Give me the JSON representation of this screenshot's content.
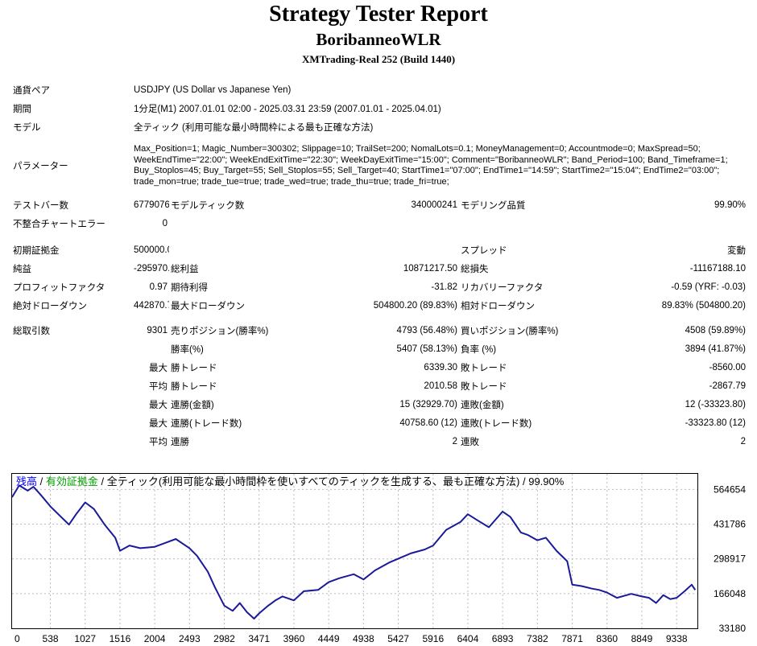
{
  "header": {
    "title": "Strategy Tester Report",
    "subtitle": "BoribanneoWLR",
    "build": "XMTrading-Real 252 (Build 1440)"
  },
  "info": {
    "pair_label": "通貨ペア",
    "pair_value": "USDJPY (US Dollar vs Japanese Yen)",
    "period_label": "期間",
    "period_value": "1分足(M1) 2007.01.01 02:00 - 2025.03.31 23:59 (2007.01.01 - 2025.04.01)",
    "model_label": "モデル",
    "model_value": "全ティック (利用可能な最小時間枠による最も正確な方法)",
    "params_label": "パラメーター",
    "params_value": "Max_Position=1; Magic_Number=300302; Slippage=10; TrailSet=200; NomalLots=0.1; MoneyManagement=0; Accountmode=0; MaxSpread=50; WeekEndTime=\"22:00\"; WeekEndExitTime=\"22:30\"; WeekDayExitTime=\"15:00\"; Comment=\"BoribanneoWLR\"; Band_Period=100; Band_Timeframe=1; Buy_Stoplos=45; Buy_Target=55; Sell_Stoplos=55; Sell_Target=40; StartTime1=\"07:00\"; EndTime1=\"14:59\"; StartTime2=\"15:04\"; EndTime2=\"03:00\"; trade_mon=true; trade_tue=true; trade_wed=true; trade_thu=true; trade_fri=true;"
  },
  "stats": {
    "bars_label": "テストバー数",
    "bars_value": "6779076",
    "ticks_label": "モデルティック数",
    "ticks_value": "340000241",
    "quality_label": "モデリング品質",
    "quality_value": "99.90%",
    "mismatch_label": "不整合チャートエラー",
    "mismatch_value": "0",
    "deposit_label": "初期証拠金",
    "deposit_value": "500000.00",
    "spread_label": "スプレッド",
    "spread_value": "変動",
    "net_label": "純益",
    "net_value": "-295970.60",
    "gross_profit_label": "総利益",
    "gross_profit_value": "10871217.50",
    "gross_loss_label": "総損失",
    "gross_loss_value": "-11167188.10",
    "pf_label": "プロフィットファクタ",
    "pf_value": "0.97",
    "expected_label": "期待利得",
    "expected_value": "-31.82",
    "recovery_label": "リカバリーファクタ",
    "recovery_value": "-0.59 (YRF: -0.03)",
    "abs_dd_label": "絶対ドローダウン",
    "abs_dd_value": "442870.70",
    "max_dd_label": "最大ドローダウン",
    "max_dd_value": "504800.20 (89.83%)",
    "rel_dd_label": "相対ドローダウン",
    "rel_dd_value": "89.83% (504800.20)",
    "total_trades_label": "総取引数",
    "total_trades_value": "9301",
    "short_label": "売りポジション(勝率%)",
    "short_value": "4793 (56.48%)",
    "long_label": "買いポジション(勝率%)",
    "long_value": "4508 (59.89%)",
    "win_rate_label": "勝率(%)",
    "win_rate_value": "5407 (58.13%)",
    "loss_rate_label": "負率 (%)",
    "loss_rate_value": "3894 (41.87%)",
    "max_label": "最大",
    "avg_label": "平均",
    "largest_win_label": "勝トレード",
    "largest_win_value": "6339.30",
    "largest_loss_label": "敗トレード",
    "largest_loss_value": "-8560.00",
    "avg_win_label": "勝トレード",
    "avg_win_value": "2010.58",
    "avg_loss_label": "敗トレード",
    "avg_loss_value": "-2867.79",
    "max_consec_wins_money_label": "連勝(金額)",
    "max_consec_wins_money_value": "15 (32929.70)",
    "max_consec_losses_money_label": "連敗(金額)",
    "max_consec_losses_money_value": "12 (-33323.80)",
    "max_consec_profit_label": "連勝(トレード数)",
    "max_consec_profit_value": "40758.60 (12)",
    "max_consec_loss_label": "連敗(トレード数)",
    "max_consec_loss_value": "-33323.80 (12)",
    "avg_consec_wins_label": "連勝",
    "avg_consec_wins_value": "2",
    "avg_consec_losses_label": "連敗",
    "avg_consec_losses_value": "2"
  },
  "chart_data": {
    "type": "line",
    "legend": {
      "balance": "残高",
      "sep1": " / ",
      "equity": "有効証拠金",
      "rest": " / 全ティック(利用可能な最小時間枠を使いすべてのティックを生成する、最も正確な方法) / 99.90%"
    },
    "colors": {
      "balance": "#0000ff",
      "equity": "#00a000",
      "line": "#1a1a9a"
    },
    "x_ticks": [
      "0",
      "538",
      "1027",
      "1516",
      "2004",
      "2493",
      "2982",
      "3471",
      "3960",
      "4449",
      "4938",
      "5427",
      "5916",
      "6404",
      "6893",
      "7382",
      "7871",
      "8360",
      "8849",
      "9338"
    ],
    "y_ticks": [
      "564654",
      "431786",
      "298917",
      "166048",
      "33180"
    ],
    "xlim": [
      0,
      9630
    ],
    "ylim": [
      33180,
      600000
    ],
    "series": [
      {
        "values_x": [
          0,
          100,
          220,
          300,
          400,
          538,
          650,
          800,
          900,
          1027,
          1150,
          1300,
          1450,
          1516,
          1650,
          1800,
          2004,
          2150,
          2300,
          2493,
          2600,
          2750,
          2850,
          2982,
          3100,
          3200,
          3300,
          3400,
          3471,
          3600,
          3700,
          3800,
          3960,
          4100,
          4300,
          4449,
          4600,
          4800,
          4938,
          5100,
          5300,
          5427,
          5600,
          5800,
          5916,
          6100,
          6300,
          6404,
          6550,
          6700,
          6893,
          7000,
          7150,
          7250,
          7382,
          7500,
          7650,
          7800,
          7871,
          8000,
          8150,
          8250,
          8360,
          8500,
          8700,
          8849,
          8950,
          9050,
          9150,
          9250,
          9338,
          9450,
          9550,
          9600
        ],
        "values_y": [
          535000,
          580000,
          560000,
          575000,
          545000,
          500000,
          470000,
          430000,
          470000,
          515000,
          490000,
          430000,
          380000,
          330000,
          350000,
          340000,
          345000,
          360000,
          375000,
          340000,
          310000,
          250000,
          190000,
          120000,
          100000,
          130000,
          95000,
          70000,
          90000,
          120000,
          140000,
          155000,
          140000,
          175000,
          180000,
          210000,
          225000,
          240000,
          220000,
          255000,
          285000,
          300000,
          320000,
          335000,
          350000,
          410000,
          440000,
          470000,
          445000,
          420000,
          480000,
          460000,
          400000,
          390000,
          370000,
          380000,
          330000,
          290000,
          200000,
          195000,
          185000,
          180000,
          170000,
          150000,
          165000,
          155000,
          150000,
          130000,
          160000,
          145000,
          150000,
          175000,
          200000,
          180000
        ]
      }
    ]
  }
}
